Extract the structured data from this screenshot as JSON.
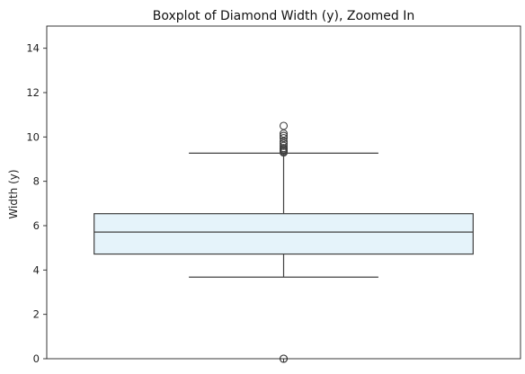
{
  "chart_data": {
    "type": "box",
    "title": "Boxplot of Diamond Width (y), Zoomed In",
    "xlabel": "",
    "ylabel": "Width (y)",
    "ylim": [
      0,
      15
    ],
    "yticks": [
      0,
      2,
      4,
      6,
      8,
      10,
      12,
      14
    ],
    "grid": false,
    "box": {
      "whisker_low": 3.68,
      "q1": 4.72,
      "median": 5.71,
      "q3": 6.54,
      "whisker_high": 9.27,
      "outliers": [
        0.0,
        0.0,
        9.3,
        9.35,
        9.4,
        9.45,
        9.5,
        9.6,
        9.7,
        9.8,
        9.95,
        10.05,
        10.15,
        10.5
      ]
    },
    "colors": {
      "box_fill": "#e5f3fa",
      "box_edge": "#404040",
      "axis": "#222222"
    }
  }
}
